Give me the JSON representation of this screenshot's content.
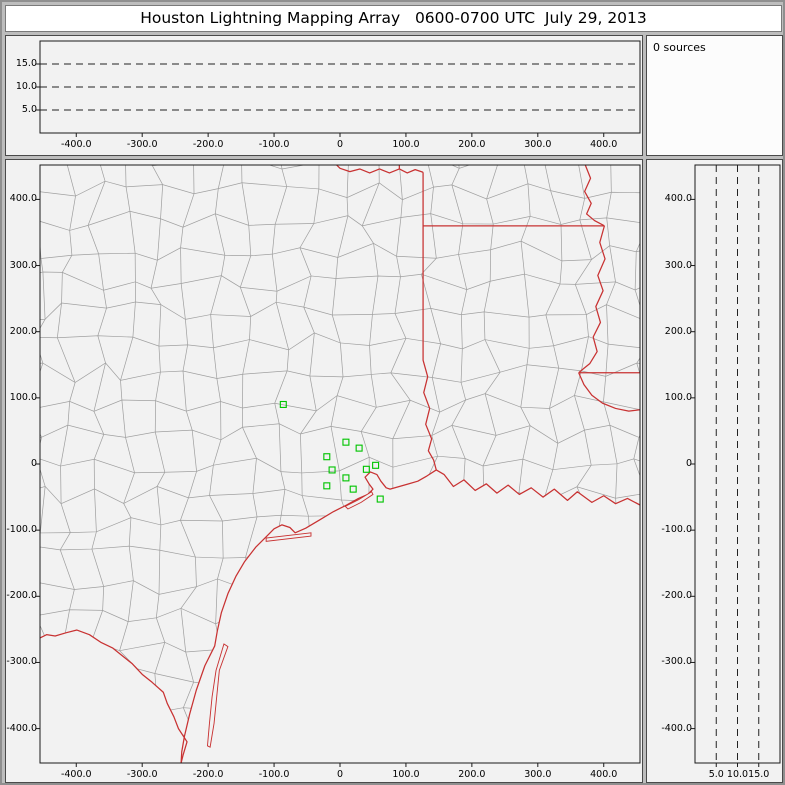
{
  "title": "Houston Lightning Mapping Array   0600-0700 UTC  July 29, 2013",
  "sources_panel": {
    "label": "0 sources"
  },
  "colors": {
    "frame-bg": "#bdbdbd",
    "panel-bg": "#f2f2f2",
    "title-bg": "#ffffff",
    "county": "#a0a0a0",
    "state-border": "#c83232",
    "station": "#00c400"
  },
  "chart_data": [
    {
      "name": "altitude-vs-east-west-distance",
      "type": "scatter",
      "position": "top",
      "xlim": [
        -455,
        455
      ],
      "alt_lim": [
        0,
        20
      ],
      "x_ticks": {
        "values": [
          -400,
          -300,
          -200,
          -100,
          0,
          100,
          200,
          300,
          400
        ],
        "labels": [
          "-400.0",
          "-300.0",
          "-200.0",
          "-100.0",
          "0",
          "100.0",
          "200.0",
          "300.0",
          "400.0"
        ]
      },
      "y_ticks": {
        "values": [
          5,
          10,
          15
        ],
        "labels": [
          "5.0",
          "10.0",
          "15.0"
        ]
      },
      "dashed_altitude_lines_km": [
        5,
        10,
        15
      ],
      "points": [],
      "source_count": 0
    },
    {
      "name": "plan-view-map",
      "type": "scatter",
      "position": "main",
      "xlim": [
        -455,
        455
      ],
      "ylim": [
        -452,
        452
      ],
      "x_ticks": {
        "values": [
          -400,
          -300,
          -200,
          -100,
          0,
          100,
          200,
          300,
          400
        ],
        "labels": [
          "-400.0",
          "-300.0",
          "-200.0",
          "-100.0",
          "0",
          "100.0",
          "200.0",
          "300.0",
          "400.0"
        ]
      },
      "y_ticks": {
        "values": [
          400,
          300,
          200,
          100,
          0,
          -100,
          -200,
          -300,
          -400
        ],
        "labels": [
          "400.0",
          "300.0",
          "200.0",
          "100.0",
          "0",
          "-100.0",
          "-200.0",
          "-300.0",
          "-400.0"
        ]
      },
      "series": [
        {
          "name": "lma-stations",
          "marker": "open-square",
          "color": "#00c400",
          "points_km": [
            [
              -86,
              90
            ],
            [
              9,
              33
            ],
            [
              29,
              24
            ],
            [
              -20,
              11
            ],
            [
              -12,
              -9
            ],
            [
              40,
              -8
            ],
            [
              54,
              -2
            ],
            [
              9,
              -21
            ],
            [
              -20,
              -33
            ],
            [
              20,
              -38
            ],
            [
              61,
              -53
            ]
          ]
        },
        {
          "name": "lightning-sources",
          "marker": "dot",
          "points_km": []
        }
      ]
    },
    {
      "name": "altitude-vs-north-south-distance",
      "type": "scatter",
      "position": "right",
      "alt_lim": [
        0,
        20
      ],
      "ylim": [
        -452,
        452
      ],
      "x_ticks": {
        "values": [
          5,
          10,
          15
        ],
        "labels": [
          "5.0",
          "10.0",
          "15.0"
        ]
      },
      "y_ticks": {
        "values": [
          400,
          300,
          200,
          100,
          0,
          -100,
          -200,
          -300,
          -400
        ],
        "labels": [
          "400.0",
          "300.0",
          "200.0",
          "100.0",
          "0",
          "-100.0",
          "-200.0",
          "-300.0",
          "-400.0"
        ]
      },
      "dashed_altitude_lines_km": [
        5,
        10,
        15
      ],
      "points": []
    }
  ]
}
